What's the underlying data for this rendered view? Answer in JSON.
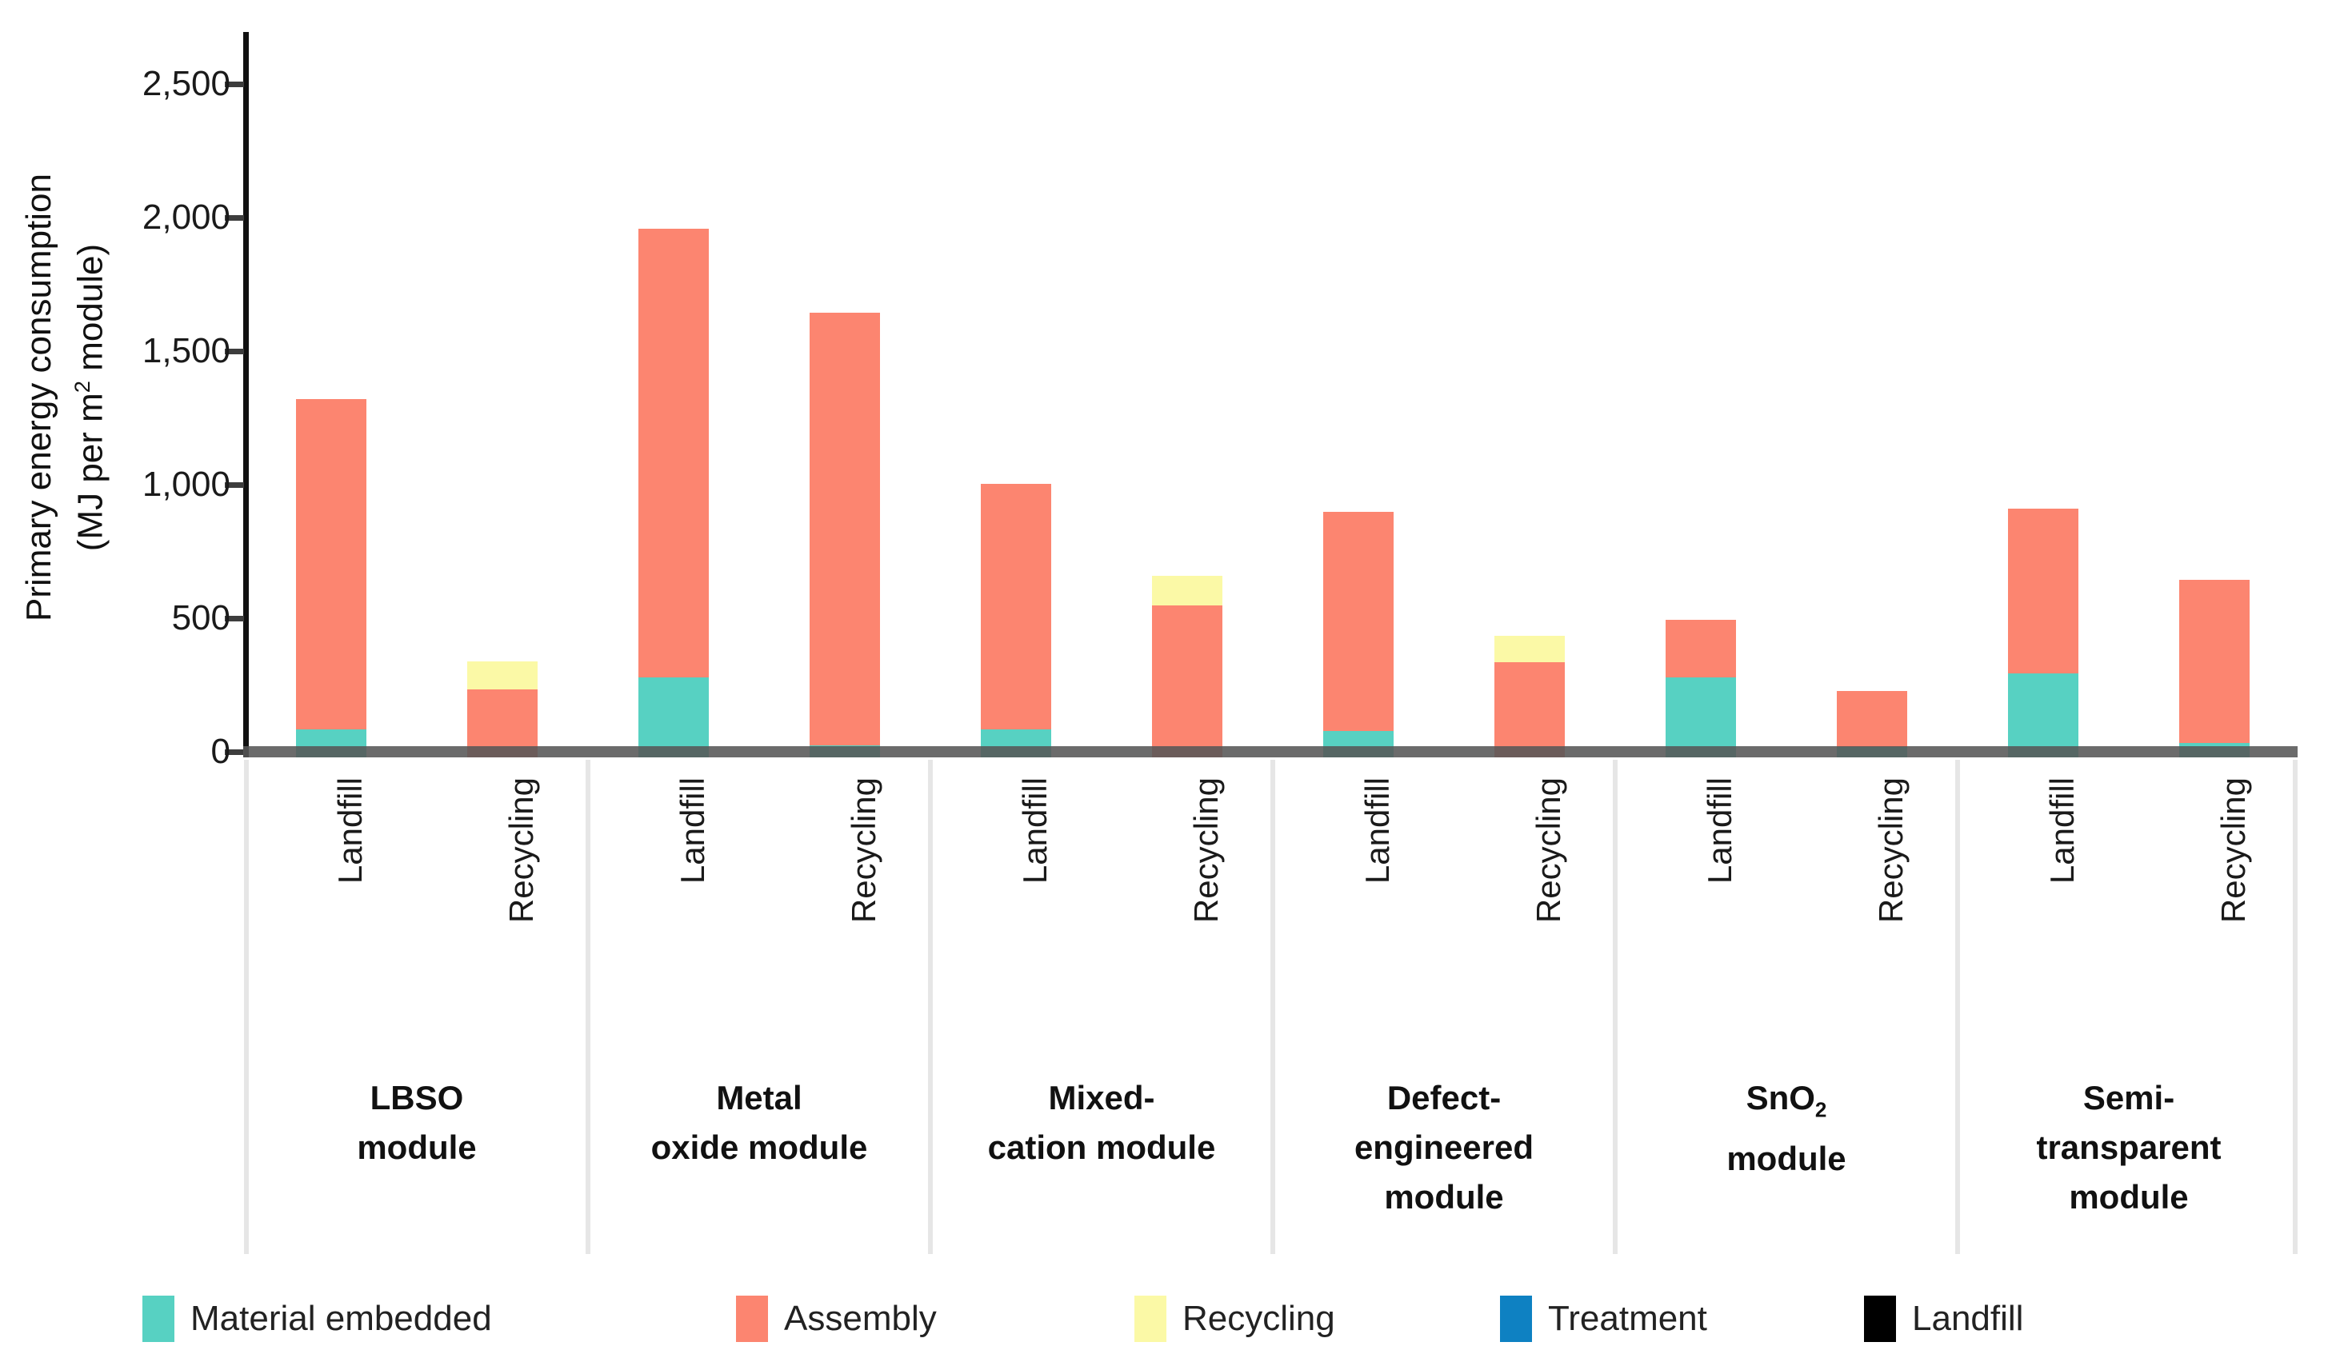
{
  "chart_data": {
    "type": "bar",
    "stacked": true,
    "orientation": "vertical",
    "title": "",
    "ylabel": {
      "line1": "Primary energy consumption",
      "line2_pre": "(MJ per m",
      "line2_sup": "2",
      "line2_post": " module)"
    },
    "ylim": [
      0,
      2700
    ],
    "grid": false,
    "legend_position": "bottom",
    "yticks": [
      {
        "value": 0,
        "label": "0"
      },
      {
        "value": 500,
        "label": "500"
      },
      {
        "value": 1000,
        "label": "1,000"
      },
      {
        "value": 1500,
        "label": "1,500"
      },
      {
        "value": 2000,
        "label": "2,000"
      },
      {
        "value": 2500,
        "label": "2,500"
      }
    ],
    "series_keys": [
      "material_embedded",
      "assembly",
      "recycling",
      "treatment",
      "landfill"
    ],
    "legend": [
      {
        "key": "material_embedded",
        "label": "Material embedded",
        "color": "#57d1c2"
      },
      {
        "key": "assembly",
        "label": "Assembly",
        "color": "#fc8570"
      },
      {
        "key": "recycling",
        "label": "Recycling",
        "color": "#fbf9a6"
      },
      {
        "key": "treatment",
        "label": "Treatment",
        "color": "#0e81c2"
      },
      {
        "key": "landfill",
        "label": "Landfill",
        "color": "#000000"
      }
    ],
    "scenario_labels": [
      "Landfill",
      "Recycling"
    ],
    "groups": [
      {
        "module_lines": [
          {
            "t": "LBSO"
          },
          {
            "t": "module"
          }
        ],
        "bars": [
          {
            "scenario": "Landfill",
            "values": {
              "material_embedded": 105,
              "assembly": 1235,
              "recycling": 0,
              "treatment": 0,
              "landfill": 0
            },
            "total": 1340
          },
          {
            "scenario": "Recycling",
            "values": {
              "material_embedded": 0,
              "assembly": 255,
              "recycling": 105,
              "treatment": 0,
              "landfill": 0
            },
            "total": 360
          }
        ]
      },
      {
        "module_lines": [
          {
            "t": "Metal"
          },
          {
            "t": "oxide module"
          }
        ],
        "bars": [
          {
            "scenario": "Landfill",
            "values": {
              "material_embedded": 300,
              "assembly": 1680,
              "recycling": 0,
              "treatment": 0,
              "landfill": 0
            },
            "total": 1980
          },
          {
            "scenario": "Recycling",
            "values": {
              "material_embedded": 45,
              "assembly": 1620,
              "recycling": 0,
              "treatment": 0,
              "landfill": 0
            },
            "total": 1665
          }
        ]
      },
      {
        "module_lines": [
          {
            "t": "Mixed-"
          },
          {
            "t": "cation module"
          }
        ],
        "bars": [
          {
            "scenario": "Landfill",
            "values": {
              "material_embedded": 105,
              "assembly": 920,
              "recycling": 0,
              "treatment": 0,
              "landfill": 0
            },
            "total": 1025
          },
          {
            "scenario": "Recycling",
            "values": {
              "material_embedded": 0,
              "assembly": 570,
              "recycling": 110,
              "treatment": 0,
              "landfill": 0
            },
            "total": 680
          }
        ]
      },
      {
        "module_lines": [
          {
            "t": "Defect-"
          },
          {
            "t": "engineered"
          },
          {
            "t": "module"
          }
        ],
        "bars": [
          {
            "scenario": "Landfill",
            "values": {
              "material_embedded": 100,
              "assembly": 820,
              "recycling": 0,
              "treatment": 0,
              "landfill": 0
            },
            "total": 920
          },
          {
            "scenario": "Recycling",
            "values": {
              "material_embedded": 0,
              "assembly": 355,
              "recycling": 100,
              "treatment": 0,
              "landfill": 0
            },
            "total": 455
          }
        ]
      },
      {
        "module_lines": [
          {
            "t": "SnO",
            "sub": "2"
          },
          {
            "t": "module"
          }
        ],
        "bars": [
          {
            "scenario": "Landfill",
            "values": {
              "material_embedded": 300,
              "assembly": 215,
              "recycling": 0,
              "treatment": 0,
              "landfill": 0
            },
            "total": 515
          },
          {
            "scenario": "Recycling",
            "values": {
              "material_embedded": 40,
              "assembly": 210,
              "recycling": 0,
              "treatment": 0,
              "landfill": 0
            },
            "total": 250
          }
        ]
      },
      {
        "module_lines": [
          {
            "t": "Semi-"
          },
          {
            "t": "transparent"
          },
          {
            "t": "module"
          }
        ],
        "bars": [
          {
            "scenario": "Landfill",
            "values": {
              "material_embedded": 315,
              "assembly": 615,
              "recycling": 0,
              "treatment": 0,
              "landfill": 0
            },
            "total": 930
          },
          {
            "scenario": "Recycling",
            "values": {
              "material_embedded": 55,
              "assembly": 610,
              "recycling": 0,
              "treatment": 0,
              "landfill": 0
            },
            "total": 665
          }
        ]
      }
    ]
  }
}
